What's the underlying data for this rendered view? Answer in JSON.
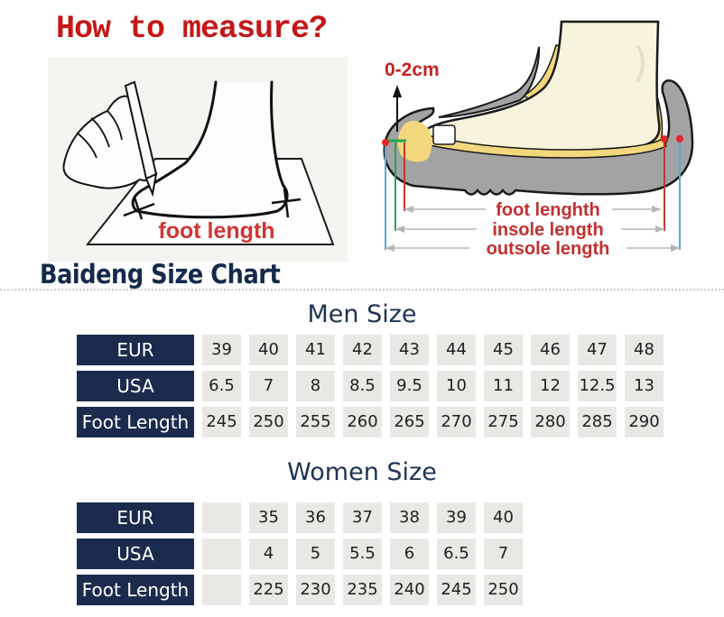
{
  "header": {
    "title": "How to measure?"
  },
  "left_diagram": {
    "caption": "foot length"
  },
  "right_diagram": {
    "gap_label": "0-2cm",
    "measure_labels": [
      "foot lenghth",
      "insole length",
      "outsole length"
    ]
  },
  "size_chart": {
    "brand_title": "Baideng Size Chart"
  },
  "chart_data": [
    {
      "type": "table",
      "title": "Men Size",
      "rows": [
        {
          "label": "EUR",
          "values": [
            "39",
            "40",
            "41",
            "42",
            "43",
            "44",
            "45",
            "46",
            "47",
            "48"
          ]
        },
        {
          "label": "USA",
          "values": [
            "6.5",
            "7",
            "8",
            "8.5",
            "9.5",
            "10",
            "11",
            "12",
            "12.5",
            "13"
          ]
        },
        {
          "label": "Foot Length",
          "values": [
            "245",
            "250",
            "255",
            "260",
            "265",
            "270",
            "275",
            "280",
            "285",
            "290"
          ]
        }
      ]
    },
    {
      "type": "table",
      "title": "Women Size",
      "rows": [
        {
          "label": "EUR",
          "values": [
            "",
            "35",
            "36",
            "37",
            "38",
            "39",
            "40"
          ]
        },
        {
          "label": "USA",
          "values": [
            "",
            "4",
            "5",
            "5.5",
            "6",
            "6.5",
            "7"
          ]
        },
        {
          "label": "Foot Length",
          "values": [
            "",
            "225",
            "230",
            "235",
            "240",
            "245",
            "250"
          ]
        }
      ]
    }
  ],
  "colors": {
    "accent_red": "#c41717",
    "label_red": "#c23030",
    "navy_header_bg": "#1b2b4d",
    "heading_navy": "#1d3354",
    "brand_navy": "#142a4c",
    "cell_gray": "#e9e8e5",
    "sole_gray": "#a3a3a3",
    "insole_yellow": "#f2d77d",
    "foot_cream": "#f7f3dc",
    "line_blue": "#5aa8dc",
    "line_green": "#27a34f",
    "line_red": "#c0392b"
  }
}
